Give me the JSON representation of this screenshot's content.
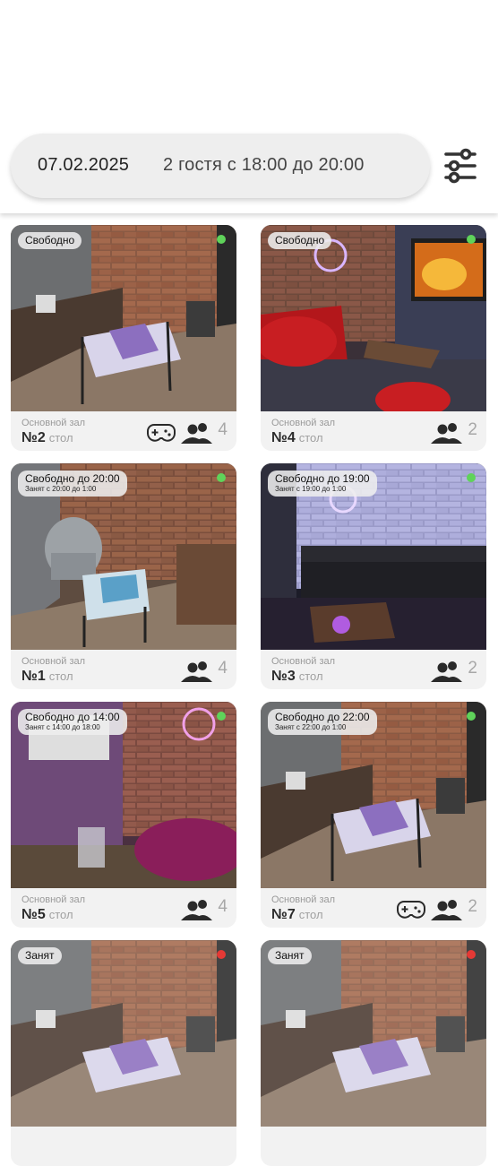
{
  "search": {
    "date": "07.02.2025",
    "guests_time": "2 гостя с 18:00 до 20:00"
  },
  "icons": {
    "filter": "sliders-icon",
    "guests": "people-icon",
    "console": "gamepad-icon"
  },
  "colors": {
    "available": "#5fd35a",
    "busy": "#e53935"
  },
  "tables": [
    {
      "status": "Свободно",
      "status_sub": "",
      "dot": "green",
      "hall": "Основной зал",
      "number": "№2",
      "kind": "стол",
      "capacity": "4",
      "has_console": true
    },
    {
      "status": "Свободно",
      "status_sub": "",
      "dot": "green",
      "hall": "Основной зал",
      "number": "№4",
      "kind": "стол",
      "capacity": "2",
      "has_console": false
    },
    {
      "status": "Свободно до 20:00",
      "status_sub": "Занят с 20:00 до 1:00",
      "dot": "green",
      "hall": "Основной зал",
      "number": "№1",
      "kind": "стол",
      "capacity": "4",
      "has_console": false
    },
    {
      "status": "Свободно до 19:00",
      "status_sub": "Занят с 19:00 до 1:00",
      "dot": "green",
      "hall": "Основной зал",
      "number": "№3",
      "kind": "стол",
      "capacity": "2",
      "has_console": false
    },
    {
      "status": "Свободно до 14:00",
      "status_sub": "Занят с 14:00 до 18:00",
      "dot": "green",
      "hall": "Основной зал",
      "number": "№5",
      "kind": "стол",
      "capacity": "4",
      "has_console": false
    },
    {
      "status": "Свободно до 22:00",
      "status_sub": "Занят с 22:00 до 1:00",
      "dot": "green",
      "hall": "Основной зал",
      "number": "№7",
      "kind": "стол",
      "capacity": "2",
      "has_console": true
    },
    {
      "status": "Занят",
      "status_sub": "",
      "dot": "red"
    },
    {
      "status": "Занят",
      "status_sub": "",
      "dot": "red"
    }
  ]
}
